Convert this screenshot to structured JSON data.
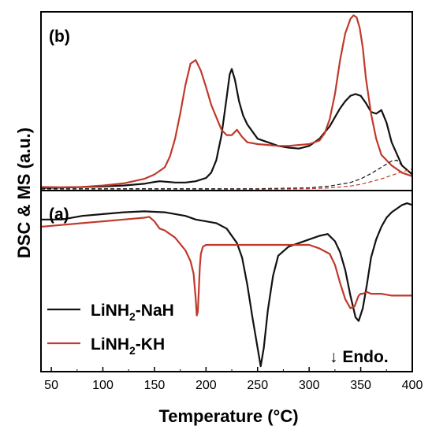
{
  "chart_data": {
    "type": "line",
    "xlabel": "Temperature (°C)",
    "ylabel": "DSC & MS (a.u.)",
    "xlim": [
      40,
      400
    ],
    "xticks": [
      50,
      100,
      150,
      200,
      250,
      300,
      350,
      400
    ],
    "yticks": "none",
    "grid": false,
    "legend": {
      "placement": "bottom-left",
      "entries": [
        {
          "label_main": "LiNH",
          "label_sub": "2",
          "label_rest": "-NaH",
          "color": "#111111"
        },
        {
          "label_main": "LiNH",
          "label_sub": "2",
          "label_rest": "-KH",
          "color": "#c0392b"
        }
      ]
    },
    "annotation": "↓ Endo.",
    "panels": [
      {
        "label": "(b)",
        "position": "top",
        "ylim": [
          0,
          100
        ],
        "series": [
          {
            "color": "#111111",
            "style": "solid",
            "x": [
              40,
              60,
              80,
              100,
              120,
              140,
              150,
              155,
              160,
              170,
              180,
              190,
              200,
              205,
              210,
              215,
              220,
              223,
              225,
              228,
              232,
              236,
              240,
              250,
              260,
              270,
              280,
              290,
              300,
              310,
              320,
              330,
              335,
              340,
              345,
              350,
              355,
              360,
              365,
              370,
              375,
              380,
              390,
              400
            ],
            "y": [
              1.5,
              1.7,
              2.0,
              2.3,
              2.8,
              3.8,
              4.8,
              5.2,
              5.0,
              4.5,
              4.5,
              5.2,
              7,
              10,
              17,
              31,
              52,
              65,
              68,
              62,
              50,
              42,
              37,
              29,
              27,
              25,
              24,
              23.5,
              25,
              29,
              36,
              46,
              50,
              53,
              54,
              53,
              49,
              44,
              43,
              45,
              38,
              27,
              14,
              9
            ]
          },
          {
            "color": "#c0392b",
            "style": "solid",
            "x": [
              40,
              60,
              80,
              100,
              120,
              140,
              150,
              160,
              165,
              170,
              175,
              180,
              185,
              190,
              195,
              200,
              205,
              210,
              215,
              220,
              225,
              230,
              235,
              240,
              250,
              260,
              270,
              280,
              290,
              300,
              310,
              315,
              320,
              325,
              330,
              335,
              340,
              343,
              346,
              349,
              352,
              355,
              360,
              365,
              370,
              380,
              390,
              400
            ],
            "y": [
              2,
              1.8,
              2.0,
              2.8,
              4,
              6.5,
              9,
              13,
              19,
              29,
              43,
              59,
              71,
              73,
              67,
              58,
              48,
              41,
              34,
              31,
              31,
              34,
              30,
              27,
              26,
              25.5,
              25,
              25,
              25.5,
              26,
              28,
              32,
              40,
              54,
              73,
              88,
              96,
              98,
              97,
              91,
              80,
              63,
              43,
              29,
              20,
              14,
              10,
              8
            ]
          },
          {
            "color": "#111111",
            "style": "dashed",
            "x": [
              40,
              100,
              150,
              200,
              250,
              300,
              320,
              340,
              350,
              360,
              370,
              380,
              385,
              390,
              400
            ],
            "y": [
              1,
              1,
              1,
              1,
              1,
              1.5,
              2.5,
              4.5,
              6.5,
              9.5,
              13,
              16.5,
              17,
              14,
              9
            ]
          },
          {
            "color": "#c0392b",
            "style": "dashed",
            "x": [
              40,
              100,
              150,
              200,
              250,
              300,
              320,
              340,
              350,
              360,
              370,
              380,
              390,
              400
            ],
            "y": [
              0.5,
              0.5,
              0.5,
              0.6,
              0.7,
              1,
              1.5,
              2.5,
              3.5,
              5,
              6.5,
              8.5,
              10.5,
              12
            ]
          }
        ]
      },
      {
        "label": "(a)",
        "position": "bottom",
        "ylim": [
          0,
          100
        ],
        "series": [
          {
            "color": "#111111",
            "style": "solid",
            "x": [
              40,
              60,
              80,
              100,
              120,
              140,
              160,
              180,
              190,
              200,
              210,
              220,
              230,
              235,
              240,
              245,
              250,
              253,
              256,
              260,
              265,
              270,
              280,
              290,
              300,
              310,
              318,
              325,
              330,
              335,
              340,
              345,
              348,
              352,
              356,
              360,
              365,
              370,
              375,
              380,
              385,
              390,
              395,
              400
            ],
            "y": [
              84,
              84,
              86,
              87,
              88,
              88.5,
              88,
              86,
              84,
              83,
              82,
              79,
              71,
              63,
              48,
              30,
              13,
              3,
              13,
              34,
              53,
              64,
              69,
              71,
              73,
              75,
              76,
              72,
              66,
              56,
              42,
              30,
              28,
              35,
              48,
              63,
              73,
              80,
              85,
              88,
              90,
              92,
              93,
              92
            ]
          },
          {
            "color": "#c0392b",
            "style": "solid",
            "x": [
              40,
              60,
              80,
              100,
              120,
              140,
              145,
              150,
              155,
              160,
              170,
              180,
              185,
              188,
              190,
              191,
              192,
              193,
              194,
              195,
              197,
              200,
              210,
              220,
              240,
              260,
              280,
              300,
              310,
              320,
              325,
              330,
              335,
              340,
              344,
              346,
              348,
              350,
              352,
              356,
              360,
              370,
              380,
              390,
              400
            ],
            "y": [
              80,
              81,
              82,
              83,
              84,
              85,
              85.5,
              83,
              79,
              78,
              74,
              67,
              61,
              54,
              40,
              31,
              33,
              45,
              58,
              65,
              69,
              70,
              70,
              70,
              70,
              70,
              70,
              70,
              68,
              65,
              59,
              49,
              40,
              35,
              36,
              39,
              42,
              43,
              43,
              44,
              43,
              43,
              42,
              42,
              42
            ]
          }
        ]
      }
    ]
  }
}
